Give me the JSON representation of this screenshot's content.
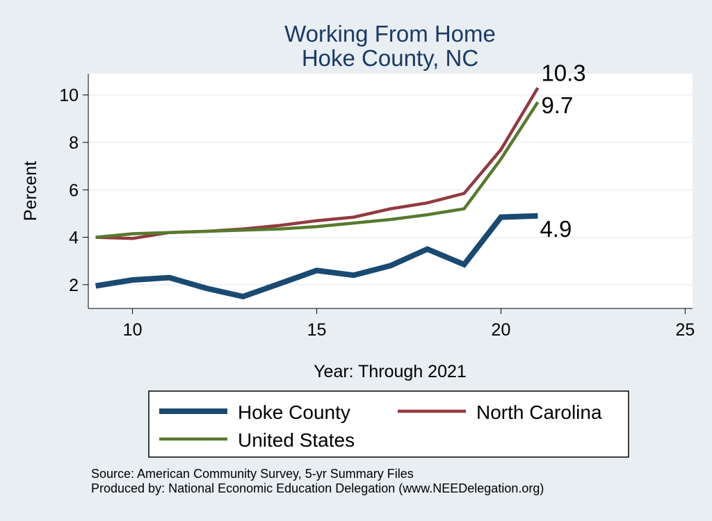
{
  "chart_data": {
    "type": "line",
    "title": [
      "Working From Home",
      "Hoke County, NC"
    ],
    "xlabel": "Year: Through 2021",
    "ylabel": "Percent",
    "xlim": [
      8.8,
      25.2
    ],
    "ylim": [
      1.0,
      10.9
    ],
    "xticks": [
      10,
      15,
      20,
      25
    ],
    "yticks": [
      2,
      4,
      6,
      8,
      10
    ],
    "grid": true,
    "legend_position": "bottom",
    "series": [
      {
        "name": "Hoke County",
        "color": "#1a4a72",
        "end_label": "4.9",
        "points": [
          [
            9,
            1.95
          ],
          [
            10,
            2.2
          ],
          [
            11,
            2.3
          ],
          [
            12,
            1.85
          ],
          [
            13,
            1.5
          ],
          [
            14,
            2.05
          ],
          [
            15,
            2.6
          ],
          [
            16,
            2.4
          ],
          [
            17,
            2.8
          ],
          [
            18,
            3.5
          ],
          [
            19,
            2.85
          ],
          [
            20,
            4.85
          ],
          [
            21,
            4.9
          ]
        ]
      },
      {
        "name": "North Carolina",
        "color": "#923a40",
        "end_label": "10.3",
        "points": [
          [
            9,
            4.0
          ],
          [
            10,
            3.95
          ],
          [
            11,
            4.2
          ],
          [
            12,
            4.25
          ],
          [
            13,
            4.35
          ],
          [
            14,
            4.5
          ],
          [
            15,
            4.7
          ],
          [
            16,
            4.85
          ],
          [
            17,
            5.2
          ],
          [
            18,
            5.45
          ],
          [
            19,
            5.85
          ],
          [
            20,
            7.7
          ],
          [
            21,
            10.3
          ]
        ]
      },
      {
        "name": "United States",
        "color": "#577a2e",
        "end_label": "9.7",
        "points": [
          [
            9,
            4.0
          ],
          [
            10,
            4.15
          ],
          [
            11,
            4.2
          ],
          [
            12,
            4.25
          ],
          [
            13,
            4.3
          ],
          [
            14,
            4.35
          ],
          [
            15,
            4.45
          ],
          [
            16,
            4.6
          ],
          [
            17,
            4.75
          ],
          [
            18,
            4.95
          ],
          [
            19,
            5.2
          ],
          [
            20,
            7.3
          ],
          [
            21,
            9.7
          ]
        ]
      }
    ],
    "notes": [
      "Source: American Community Survey, 5-yr Summary Files",
      "Produced by: National Economic Education Delegation (www.NEEDelegation.org)"
    ]
  }
}
